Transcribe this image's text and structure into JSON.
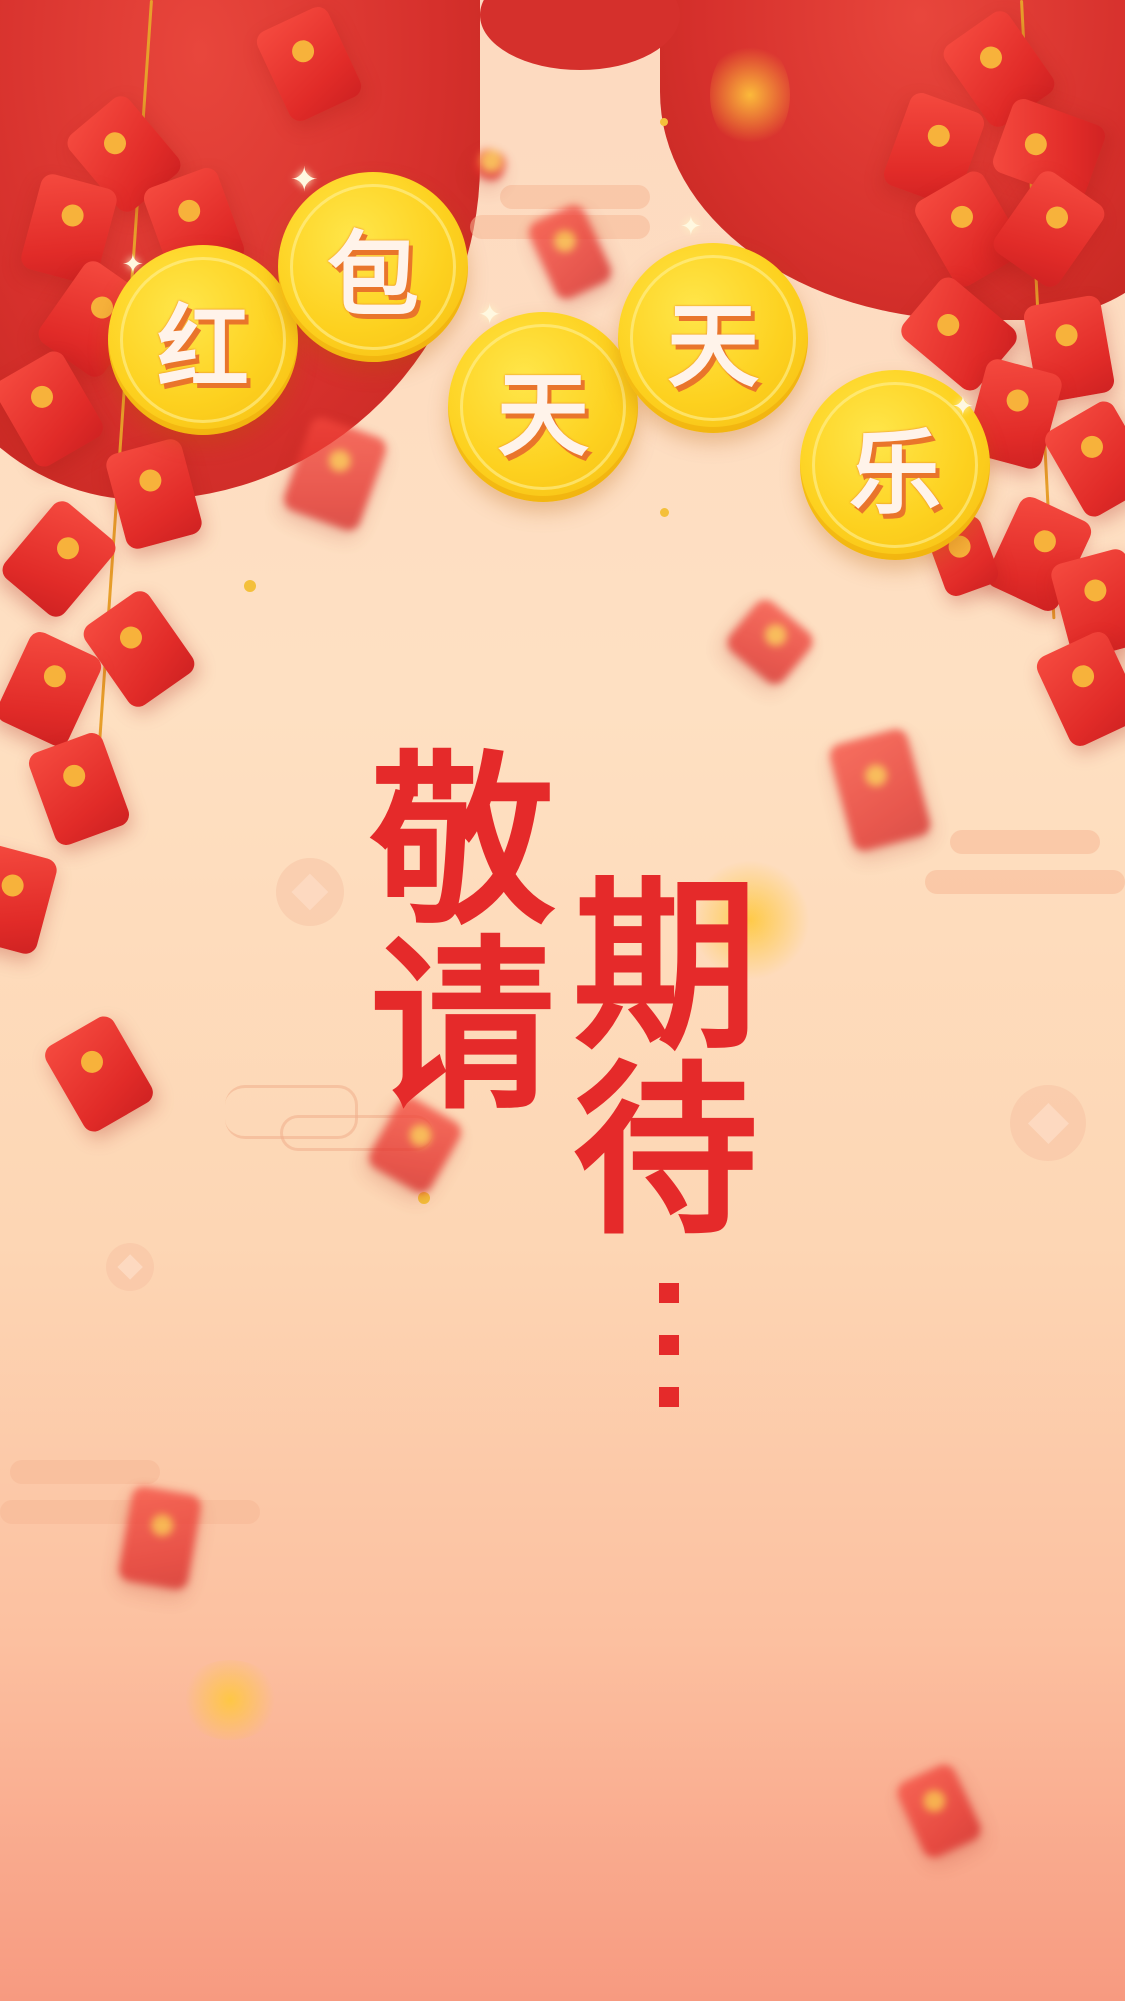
{
  "banner": {
    "coins": [
      "红",
      "包",
      "天",
      "天",
      "乐"
    ]
  },
  "main": {
    "line1": [
      "敬",
      "请"
    ],
    "line2": [
      "期",
      "待"
    ],
    "ellipsis": "…"
  },
  "colors": {
    "title_red": "#e52a2a",
    "coin_gold": "#fdd11f",
    "envelope_red": "#e12b28",
    "background_top": "#fdd9c0",
    "background_bottom": "#f79a80"
  }
}
